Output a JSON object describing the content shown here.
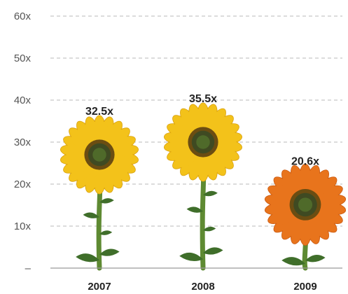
{
  "chart_data": {
    "type": "bar",
    "categories": [
      "2007",
      "2008",
      "2009"
    ],
    "values": [
      32.5,
      35.5,
      20.6
    ],
    "data_labels": [
      "32.5x",
      "35.5x",
      "20.6x"
    ],
    "y_ticks": [
      "–",
      "10x",
      "20x",
      "30x",
      "40x",
      "50x",
      "60x"
    ],
    "ylim": [
      0,
      60
    ],
    "grid": true,
    "bar_style": "sunflower",
    "colors": {
      "petal_yellow": "#f3c21a",
      "petal_orange": "#e8741c",
      "center": "#5a4a1a",
      "stem": "#5e8a32",
      "leaf": "#3f6e2a",
      "grid": "#b8b8b8"
    }
  }
}
